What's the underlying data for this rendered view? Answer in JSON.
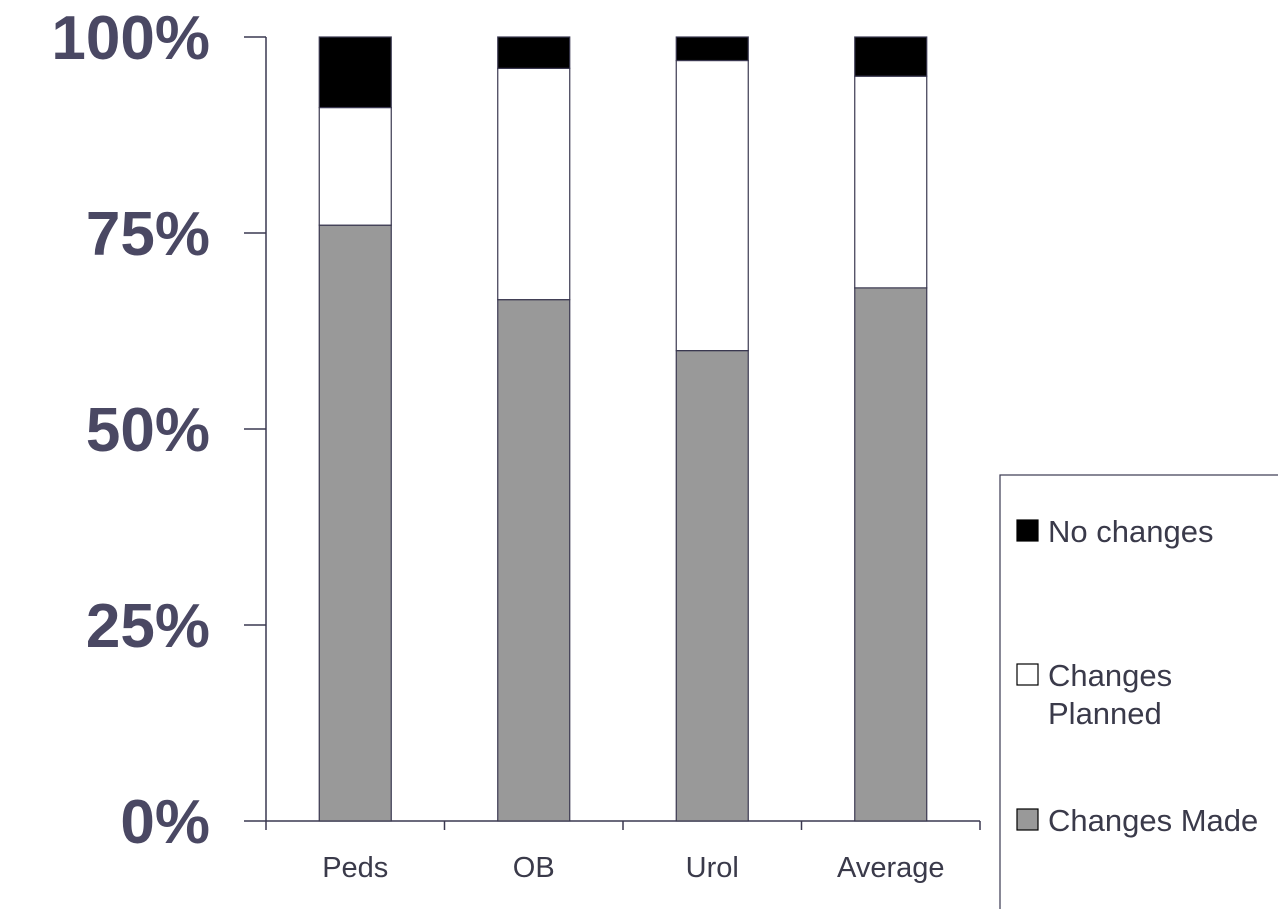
{
  "chart_data": {
    "type": "bar",
    "stacked": true,
    "percent": true,
    "categories": [
      "Peds",
      "OB",
      "Urol",
      "Average"
    ],
    "series": [
      {
        "name": "Changes Made",
        "values": [
          76,
          66.5,
          60,
          68
        ],
        "color": "#999999"
      },
      {
        "name": "Changes Planned",
        "values": [
          15,
          29.5,
          37,
          27
        ],
        "color": "#ffffff"
      },
      {
        "name": "No changes",
        "values": [
          9,
          4,
          3,
          5
        ],
        "color": "#000000"
      }
    ],
    "legend_order": [
      "No changes",
      "Changes Planned",
      "Changes Made"
    ],
    "yticks": [
      "0%",
      "25%",
      "50%",
      "75%",
      "100%"
    ],
    "ylim": [
      0,
      100
    ],
    "legend_position": "right",
    "grid": false,
    "title": "",
    "xlabel": "",
    "ylabel": ""
  }
}
